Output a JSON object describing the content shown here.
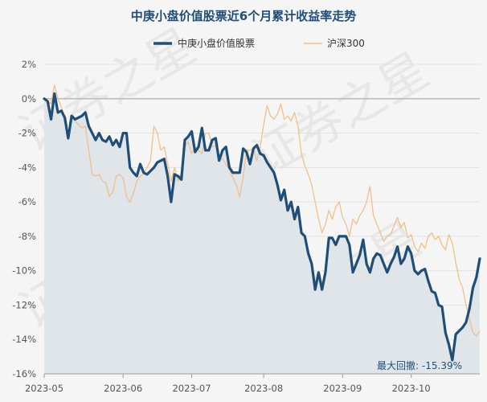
{
  "chart_data": {
    "type": "line",
    "title": "中庚小盘价值股票近6个月累计收益率走势",
    "legend": {
      "placement": "top"
    },
    "grid": {
      "horizontal": true,
      "vertical": false
    },
    "ylim": [
      -16,
      2
    ],
    "yticks": [
      2,
      0,
      -2,
      -4,
      -6,
      -8,
      -10,
      -12,
      -14,
      -16
    ],
    "ytick_labels": [
      "2%",
      "0%",
      "-2%",
      "-4%",
      "-6%",
      "-8%",
      "-10%",
      "-12%",
      "-14%",
      "-16%"
    ],
    "xticks": [
      {
        "label": "2023-05",
        "index": 0
      },
      {
        "label": "2023-06",
        "index": 23
      },
      {
        "label": "2023-07",
        "index": 43
      },
      {
        "label": "2023-08",
        "index": 64
      },
      {
        "label": "2023-09",
        "index": 87
      },
      {
        "label": "2023-10",
        "index": 107
      }
    ],
    "num_points": 128,
    "series": [
      {
        "name": "中庚小盘价值股票",
        "color": "#1f4e79",
        "fill": "#dde3e8",
        "values": [
          0,
          -0.15,
          -1.2,
          0.3,
          -0.8,
          -0.7,
          -1.1,
          -2.3,
          -1.0,
          -1.2,
          -1.1,
          -1.0,
          -0.8,
          -1.6,
          -2.0,
          -2.4,
          -2.0,
          -2.4,
          -2.5,
          -2.2,
          -2.7,
          -2.4,
          -2.8,
          -2.0,
          -2.0,
          -4.0,
          -4.3,
          -4.5,
          -3.8,
          -4.3,
          -4.4,
          -4.2,
          -4.0,
          -3.7,
          -3.6,
          -3.5,
          -4.5,
          -6.0,
          -4.4,
          -4.5,
          -4.7,
          -2.4,
          -2.2,
          -1.9,
          -3.1,
          -2.8,
          -1.7,
          -3.0,
          -3.0,
          -2.4,
          -2.3,
          -3.6,
          -3.0,
          -2.8,
          -4.0,
          -4.3,
          -4.3,
          -4.3,
          -2.9,
          -3.1,
          -3.8,
          -2.9,
          -2.7,
          -3.2,
          -3.3,
          -3.7,
          -4.0,
          -4.3,
          -5.0,
          -5.9,
          -5.3,
          -6.5,
          -6.0,
          -7.0,
          -6.3,
          -7.8,
          -8.0,
          -9.0,
          -9.6,
          -11.1,
          -10.1,
          -11.1,
          -10.1,
          -8.1,
          -8.1,
          -8.5,
          -8.0,
          -8.0,
          -8.0,
          -8.5,
          -10.1,
          -9.6,
          -9.1,
          -8.2,
          -9.6,
          -10.1,
          -9.3,
          -9.0,
          -9.1,
          -9.6,
          -10.1,
          -9.6,
          -9.2,
          -8.6,
          -9.6,
          -9.3,
          -8.6,
          -9.0,
          -10.0,
          -10.2,
          -10.0,
          -9.9,
          -10.6,
          -11.2,
          -11.3,
          -12.0,
          -12.1,
          -13.6,
          -14.3,
          -15.2,
          -13.7,
          -13.5,
          -13.3,
          -13.0,
          -12.2,
          -11.0,
          -10.4,
          -9.3
        ]
      },
      {
        "name": "沪深300",
        "color": "#f0c088",
        "values": [
          0,
          -0.15,
          -0.3,
          0.8,
          0.0,
          -0.5,
          -1.1,
          -2.2,
          -1.1,
          -1.3,
          -1.5,
          -1.7,
          -1.6,
          -3.0,
          -4.4,
          -4.5,
          -4.4,
          -4.8,
          -4.9,
          -5.7,
          -5.4,
          -4.5,
          -4.4,
          -4.6,
          -5.7,
          -6.0,
          -5.5,
          -4.8,
          -4.5,
          -4.4,
          -4.0,
          -3.6,
          -1.6,
          -2.0,
          -3.0,
          -2.8,
          -3.8,
          -4.8,
          -4.0,
          -4.8,
          -4.3,
          -2.8,
          -2.5,
          -3.2,
          -2.8,
          -3.0,
          -3.2,
          -2.0,
          -2.0,
          -2.8,
          -2.7,
          -3.4,
          -3.5,
          -3.8,
          -4.1,
          -4.6,
          -5.0,
          -5.7,
          -4.6,
          -3.0,
          -3.0,
          -2.9,
          -3.6,
          -2.8,
          -1.5,
          -0.4,
          -1.0,
          -1.2,
          -0.9,
          -0.3,
          -1.2,
          -1.0,
          -1.3,
          -0.8,
          -1.6,
          -3.2,
          -3.9,
          -4.4,
          -5.0,
          -6.0,
          -7.0,
          -7.8,
          -7.3,
          -6.5,
          -7.0,
          -6.3,
          -6.0,
          -6.9,
          -7.3,
          -8.0,
          -7.0,
          -7.3,
          -6.8,
          -6.5,
          -6.0,
          -5.1,
          -6.8,
          -7.3,
          -7.8,
          -8.3,
          -8.0,
          -7.9,
          -7.4,
          -6.9,
          -7.5,
          -7.2,
          -8.1,
          -7.9,
          -8.6,
          -8.9,
          -8.4,
          -8.7,
          -8.0,
          -7.8,
          -8.2,
          -8.0,
          -8.5,
          -8.8,
          -7.9,
          -8.4,
          -9.5,
          -10.5,
          -11.0,
          -12.0,
          -12.8,
          -13.6,
          -13.8,
          -13.5
        ]
      }
    ],
    "annotation": "最大回撤: -15.39%"
  },
  "watermark": {
    "text": "证券之星"
  }
}
